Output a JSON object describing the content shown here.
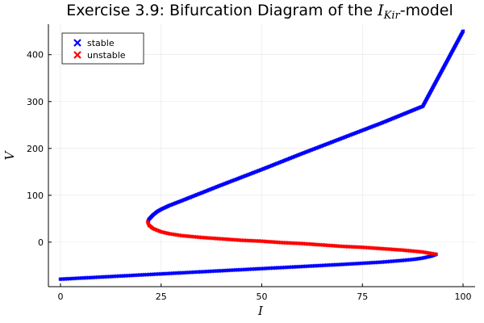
{
  "chart_data": {
    "type": "scatter",
    "title_prefix": "Exercise 3.9: Bifurcation Diagram of the ",
    "title_math": "I",
    "title_math_sub": "Kir",
    "title_suffix": "-model",
    "xlabel": "I",
    "ylabel": "V",
    "xlim": [
      -3,
      103
    ],
    "ylim": [
      -95,
      465
    ],
    "xticks": [
      0,
      25,
      50,
      75,
      100
    ],
    "yticks": [
      0,
      100,
      200,
      300,
      400
    ],
    "grid": true,
    "legend_position": "top-left",
    "series": [
      {
        "name": "stable",
        "color": "#0000ff",
        "marker": "x",
        "segments": [
          {
            "x": [
              0,
              10,
              20,
              30,
              40,
              50,
              60,
              70,
              80,
              85,
              88,
              90,
              92,
              93.3
            ],
            "y": [
              -79,
              -74.5,
              -70,
              -65.5,
              -61,
              -56.5,
              -52,
              -47.5,
              -42.5,
              -39,
              -36.5,
              -34,
              -30,
              -26
            ]
          },
          {
            "x": [
              21.7,
              22,
              23,
              24,
              25,
              27,
              30,
              35,
              40,
              50,
              60,
              70,
              80,
              90,
              100
            ],
            "y": [
              43,
              49,
              58,
              65,
              70,
              78,
              88,
              105,
              122,
              155,
              189,
              222,
              255,
              290,
              450
            ]
          }
        ]
      },
      {
        "name": "unstable",
        "color": "#ff0000",
        "marker": "x",
        "segments": [
          {
            "x": [
              21.7,
              22,
              23,
              25,
              27,
              30,
              35,
              40,
              45,
              50,
              55,
              60,
              65,
              70,
              75,
              80,
              85,
              90,
              93.3
            ],
            "y": [
              43,
              36,
              29,
              22,
              18,
              14,
              10,
              7,
              4,
              2,
              -1,
              -3,
              -6,
              -9,
              -11,
              -14,
              -17,
              -21,
              -26
            ]
          }
        ]
      }
    ]
  }
}
